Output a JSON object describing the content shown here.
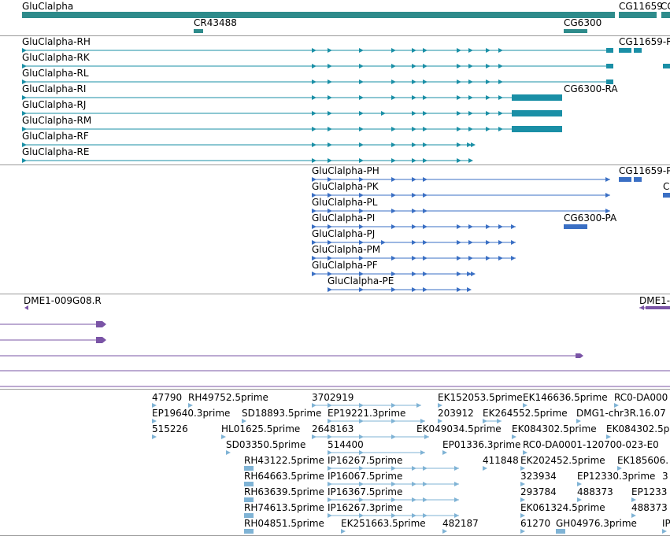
{
  "colors": {
    "gene": "#2e8b8b",
    "transcript": "#1a8fa6",
    "protein": "#3a6fc4",
    "primer": "#7a54a6",
    "est": "#7fb3d5"
  },
  "gene_track": {
    "genes": [
      {
        "label": "GluClalpha"
      },
      {
        "label": "CR43488"
      },
      {
        "label": "CG6300"
      },
      {
        "label": "CG11659"
      },
      {
        "label": "CG"
      }
    ]
  },
  "transcript_track": {
    "transcripts": [
      {
        "label": "GluClalpha-RH"
      },
      {
        "label": "GluClalpha-RK"
      },
      {
        "label": "GluClalpha-RL"
      },
      {
        "label": "GluClalpha-RI"
      },
      {
        "label": "GluClalpha-RJ"
      },
      {
        "label": "GluClalpha-RM"
      },
      {
        "label": "GluClalpha-RF"
      },
      {
        "label": "GluClalpha-RE"
      }
    ],
    "other": [
      {
        "label": "CG11659-R"
      },
      {
        "label": "CG6300-RA"
      }
    ]
  },
  "protein_track": {
    "proteins": [
      {
        "label": "GluClalpha-PH"
      },
      {
        "label": "GluClalpha-PK"
      },
      {
        "label": "GluClalpha-PL"
      },
      {
        "label": "GluClalpha-PI"
      },
      {
        "label": "GluClalpha-PJ"
      },
      {
        "label": "GluClalpha-PM"
      },
      {
        "label": "GluClalpha-PF"
      },
      {
        "label": "GluClalpha-PE"
      }
    ],
    "other": [
      {
        "label": "CG11659-P"
      },
      {
        "label": "CG6300-PA"
      },
      {
        "label": "C"
      }
    ]
  },
  "primer_track": {
    "labels": [
      {
        "label": "DME1-009G08.R"
      },
      {
        "label": "DME1-"
      }
    ]
  },
  "est_track": {
    "rows": [
      [
        "47790",
        "RH49752.5prime",
        "3702919",
        "EK152053.5prime",
        "EK146636.5prime",
        "RC0-DA000"
      ],
      [
        "EP19640.3prime",
        "SD18893.5prime",
        "EP19221.3prime",
        "203912",
        "EK264552.5prime",
        "DMG1-chr3R.16.07"
      ],
      [
        "515226",
        "HL01625.5prime",
        "2648163",
        "EK049034.5prime",
        "EK084302.5prime",
        "EK084302.5p"
      ],
      [
        "SD03350.5prime",
        "514400",
        "EP01336.3prime",
        "RC0-DA0001-120700-023-E0"
      ],
      [
        "RH43122.5prime",
        "IP16267.5prime",
        "411848",
        "EK202452.5prime",
        "EK185606."
      ],
      [
        "RH64663.5prime",
        "IP16067.5prime",
        "323934",
        "EP12330.3prime",
        "3"
      ],
      [
        "RH63639.5prime",
        "IP16367.5prime",
        "293784",
        "488373",
        "EP1233"
      ],
      [
        "RH74613.5prime",
        "IP16267.3prime",
        "EK061324.5prime",
        "488373"
      ],
      [
        "RH04851.5prime",
        "EK251663.5prime",
        "482187",
        "61270",
        "GH04976.3prime",
        "IP"
      ]
    ]
  }
}
